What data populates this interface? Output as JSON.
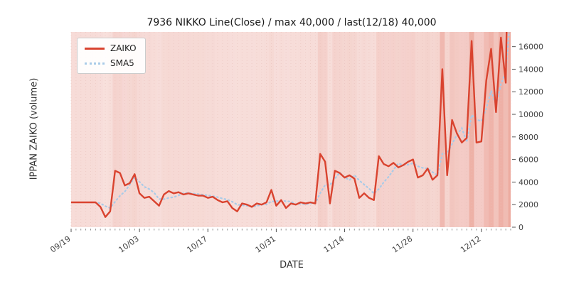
{
  "chart": {
    "title": "7936 NIKKO Line(Close) / max 40,000 / last(12/18) 40,000"
  },
  "legend": {
    "entries": [
      {
        "label": "ZAIKO"
      },
      {
        "label": "SMA5"
      }
    ]
  },
  "colors": {
    "zaiko_line": "#d9432f",
    "sma5_line": "#a9cbe8",
    "band": "#dd5f4a",
    "plot_bg": "#faeae8",
    "tick_text": "#444444",
    "grid_dots": "#e9c0ba"
  },
  "chart_data": {
    "type": "line",
    "title": "7936 NIKKO Line(Close) / max 40,000 / last(12/18) 40,000",
    "xlabel": "DATE",
    "ylabel": "IPPAN ZAIKO (volume)",
    "legend_position": "upper left",
    "x_start_date": "09/19",
    "x_end_date": "12/18",
    "x_tick_labels": [
      "09/19",
      "10/03",
      "10/17",
      "10/31",
      "11/14",
      "11/28",
      "12/12"
    ],
    "x_tick_indices": [
      0,
      14,
      28,
      42,
      56,
      70,
      84
    ],
    "y_tick_values": [
      0,
      2000,
      4000,
      6000,
      8000,
      10000,
      12000,
      14000,
      16000
    ],
    "ylim": [
      0,
      17300
    ],
    "max_value": 40000,
    "last_value": 40000,
    "background_bands": "per-day vertical shading, opacity proportional to ZAIKO value",
    "series": [
      {
        "name": "ZAIKO",
        "style": "solid",
        "color": "#d9432f",
        "values": [
          2200,
          2200,
          2200,
          2200,
          2200,
          2200,
          1800,
          900,
          1400,
          5000,
          4800,
          3700,
          3900,
          4700,
          3000,
          2600,
          2700,
          2300,
          1900,
          2900,
          3200,
          3000,
          3100,
          2900,
          3000,
          2900,
          2800,
          2800,
          2600,
          2700,
          2400,
          2200,
          2300,
          1700,
          1400,
          2100,
          2000,
          1800,
          2100,
          2000,
          2200,
          3300,
          1900,
          2400,
          1700,
          2100,
          2000,
          2200,
          2100,
          2200,
          2100,
          6500,
          5800,
          2100,
          5000,
          4800,
          4400,
          4600,
          4300,
          2600,
          3000,
          2600,
          2400,
          6300,
          5600,
          5400,
          5700,
          5300,
          5500,
          5800,
          6000,
          4400,
          4600,
          5200,
          4200,
          4600,
          14000,
          4600,
          9500,
          8300,
          7500,
          7900,
          16500,
          7500,
          7600,
          13000,
          15800,
          10200,
          16800,
          12800,
          40000
        ]
      },
      {
        "name": "SMA5",
        "style": "dotted",
        "color": "#a9cbe8",
        "derivation": "5-point moving average of ZAIKO"
      }
    ]
  }
}
